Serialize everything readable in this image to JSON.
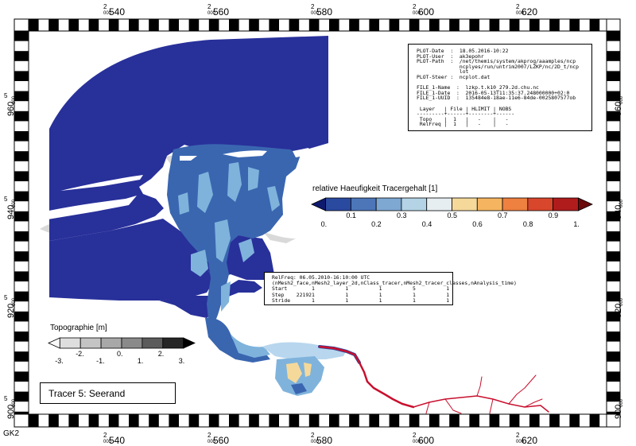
{
  "grid": {
    "label": "GK2",
    "easting": [
      {
        "main": "2",
        "big": "540",
        "small": "000"
      },
      {
        "main": "2",
        "big": "560",
        "small": "000"
      },
      {
        "main": "2",
        "big": "580",
        "small": "000"
      },
      {
        "main": "2",
        "big": "600",
        "small": "000"
      },
      {
        "main": "2",
        "big": "620",
        "small": "000"
      }
    ],
    "northing": [
      {
        "main": "5",
        "big": "960",
        "small": "000"
      },
      {
        "main": "5",
        "big": "940",
        "small": "000"
      },
      {
        "main": "5",
        "big": "920",
        "small": "000"
      },
      {
        "main": "5",
        "big": "900",
        "small": "000"
      }
    ]
  },
  "header_box": {
    "lines": [
      "PLOT-Date  :  18.05.2016-10:22",
      "PLOT-User  :  ak3epohr",
      "PLOT-Path  :  /net/themis/system/akprog/aaamples/ncp",
      "              ncplyes/run/untrim2007/LZKP/nc/2D_t/ncp",
      "              lot",
      "PLOT-Steer :  ncplot.dat",
      "",
      "FILE_1-Name  :  lzkp.t.k10_279.2d.chu.nc",
      "FILE_1-Date  :  2016-05-13T11:35:37.248000000+02:0",
      "FILE_1-UUID  :  135484e8-18ae-11e6-84de-0025807577ob",
      "",
      " Layer   | File | HLIMIT | NOBS",
      "---------+------+--------+------",
      " Topo    |  1   |   -    |   -",
      " RelFreq |  1   |   -    |   -"
    ]
  },
  "relfreq_box": {
    "lines": [
      "RelFreq: 06.05.2010-16:10:00 UTC",
      "(nMesh2_face,nMesh2_layer_2d,nClass_tracer,nMesh2_tracer_classes,nAnalysis_time)",
      "Start        1          1          1          5          1",
      "Step    221921          1          1          1          1",
      "Stride       1          1          1          1          1"
    ]
  },
  "colorbar_tracer": {
    "title": "relative Haeufigkeit Tracergehalt [1]",
    "colors": [
      "#0d1a6e",
      "#2a4aa0",
      "#4d76b8",
      "#7ea8d2",
      "#b4d4e6",
      "#e6eef2",
      "#f5d99a",
      "#f5b560",
      "#ee8040",
      "#d8462c",
      "#b01c1c",
      "#6a0a0a"
    ],
    "ticks_lower": [
      "0.",
      "0.2",
      "0.4",
      "0.6",
      "0.8",
      "1."
    ],
    "ticks_upper": [
      "0.1",
      "0.3",
      "0.5",
      "0.7",
      "0.9"
    ]
  },
  "colorbar_topo": {
    "title": "Topographie [m]",
    "colors": [
      "#f8f8f8",
      "#dedede",
      "#c4c4c4",
      "#a8a8a8",
      "#8a8a8a",
      "#5c5c5c",
      "#262626",
      "#000000"
    ],
    "ticks_lower": [
      "-3.",
      "-1.",
      "1.",
      "3."
    ],
    "ticks_upper": [
      "-2.",
      "0.",
      "2."
    ]
  },
  "title_box": {
    "text": "Tracer 5: Seerand"
  },
  "colors": {
    "sea_dark": "#28309a",
    "mid_blue": "#3a66b0",
    "light_blue": "#7fb3dc",
    "pale_blue": "#b8d6ee",
    "river_red": "#c8102e",
    "land_gray": "#d9d9d9"
  }
}
